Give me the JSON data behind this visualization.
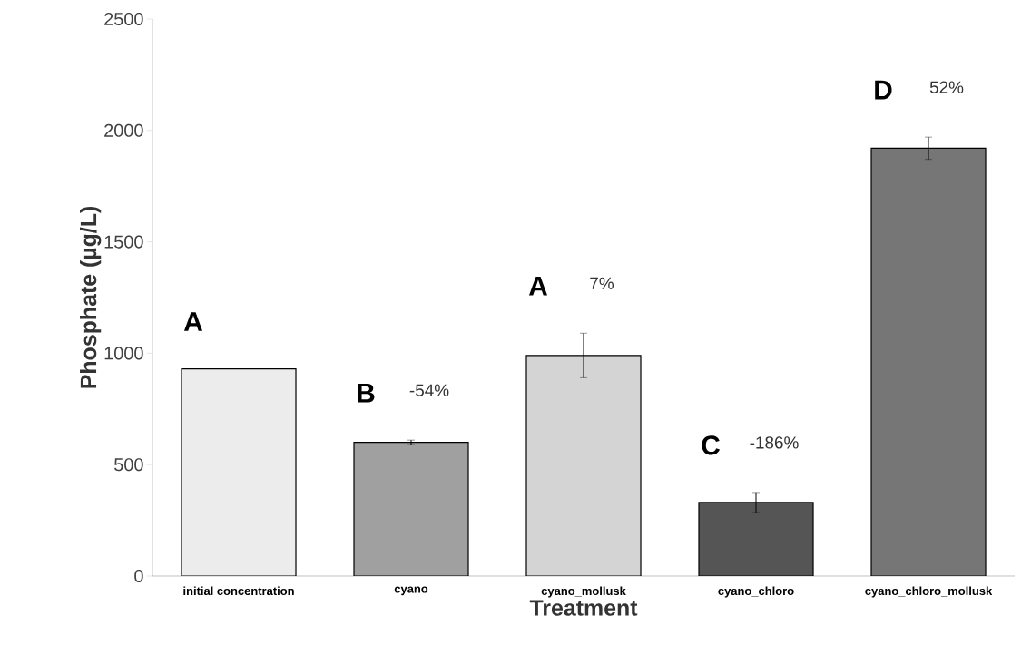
{
  "chart_data": {
    "type": "bar",
    "xlabel": "Treatment",
    "ylabel": "Phosphate (µg/L)",
    "categories": [
      "initial concentration",
      "cyano",
      "cyano_mollusk",
      "cyano_chloro",
      "cyano_chloro_mollusk"
    ],
    "values": [
      930,
      600,
      990,
      330,
      1920
    ],
    "colors": [
      "#ececec",
      "#a0a0a0",
      "#d4d4d4",
      "#555555",
      "#767676"
    ],
    "errors": [
      null,
      10,
      100,
      45,
      50
    ],
    "ylim": [
      0,
      2500
    ],
    "yticks": [
      0,
      500,
      1000,
      1500,
      2000,
      2500
    ],
    "grid": false,
    "annotations": [
      "A",
      "B",
      "A",
      "C",
      "D",
      "-54%",
      "7%",
      "-186%",
      "52%"
    ]
  }
}
